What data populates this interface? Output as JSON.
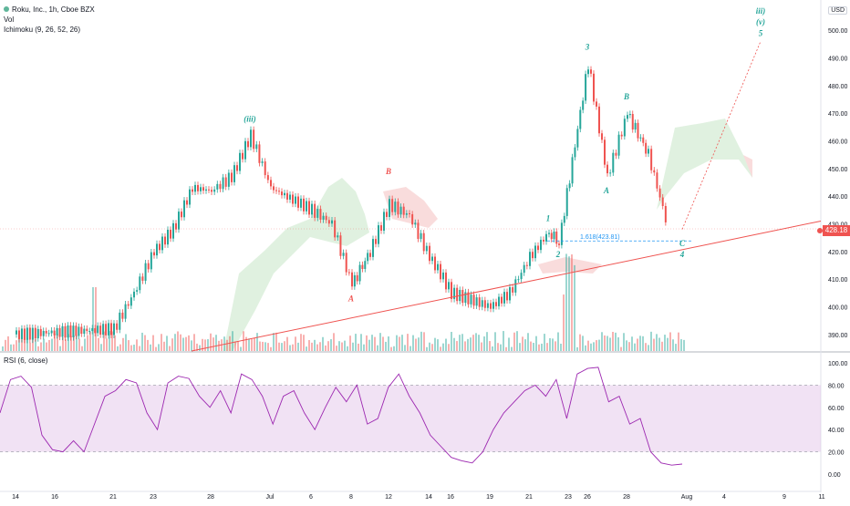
{
  "legend": {
    "symbol": "Roku, Inc., 1h, Cboe BZX",
    "volume": "Vol",
    "ichimoku": "Ichimoku (9, 26, 52, 26)"
  },
  "currency": "USD",
  "current_price_label": "428.18",
  "fib_label": "1.618(423.81)",
  "rsi_legend": "RSI (6, close)",
  "colors": {
    "up": "#26a69a",
    "down": "#ef5350",
    "rsi": "#9c27b0",
    "cloud_bull": "#a5d6a7",
    "cloud_bear": "#ef9a9a",
    "wave_green": "#26a69a",
    "wave_red": "#ef5350"
  },
  "chart_data": [
    {
      "type": "candlestick",
      "title": "",
      "y_ticks": [
        "390.00",
        "400.00",
        "410.00",
        "420.00",
        "430.00",
        "440.00",
        "450.00",
        "460.00",
        "470.00",
        "480.00",
        "490.00",
        "500.00"
      ],
      "ylim": [
        384,
        506
      ],
      "x_ticks": [
        "14",
        "16",
        "21",
        "23",
        "28",
        "Jul",
        "6",
        "8",
        "12",
        "14",
        "16",
        "19",
        "21",
        "23",
        "26",
        "28",
        "Aug",
        "4",
        "9",
        "11"
      ],
      "price_anchors": [
        {
          "date": "Jun 14",
          "price": 390
        },
        {
          "date": "Jun 21",
          "price": 392
        },
        {
          "date": "Jun 22",
          "price": 405
        },
        {
          "date": "Jun 23",
          "price": 420
        },
        {
          "date": "Jun 24",
          "price": 428
        },
        {
          "date": "Jun 25",
          "price": 443
        },
        {
          "date": "Jun 28",
          "price": 442
        },
        {
          "date": "Jun 29",
          "price": 447
        },
        {
          "date": "Jun 30",
          "price": 462
        },
        {
          "date": "Jul 1",
          "price": 443
        },
        {
          "date": "Jul 6",
          "price": 435
        },
        {
          "date": "Jul 7",
          "price": 430
        },
        {
          "date": "Jul 8",
          "price": 408
        },
        {
          "date": "Jul 9",
          "price": 420
        },
        {
          "date": "Jul 12",
          "price": 437
        },
        {
          "date": "Jul 13",
          "price": 433
        },
        {
          "date": "Jul 14",
          "price": 418
        },
        {
          "date": "Jul 15",
          "price": 412
        },
        {
          "date": "Jul 16",
          "price": 405
        },
        {
          "date": "Jul 19",
          "price": 400
        },
        {
          "date": "Jul 20",
          "price": 405
        },
        {
          "date": "Jul 21",
          "price": 418
        },
        {
          "date": "Jul 22",
          "price": 427
        },
        {
          "date": "Jul 23",
          "price": 423
        },
        {
          "date": "Jul 26",
          "price": 488
        },
        {
          "date": "Jul 27",
          "price": 447
        },
        {
          "date": "Jul 28",
          "price": 470
        },
        {
          "date": "Jul 29",
          "price": 455
        },
        {
          "date": "Jul 30",
          "price": 428
        }
      ],
      "wave_labels": [
        {
          "text": "(iii)",
          "date": "Jun 30",
          "price": 467,
          "color": "green"
        },
        {
          "text": "A",
          "date": "Jul 8",
          "price": 402,
          "color": "red"
        },
        {
          "text": "B",
          "date": "Jul 12",
          "price": 448,
          "color": "red"
        },
        {
          "text": "1",
          "date": "Jul 22",
          "price": 431,
          "color": "green"
        },
        {
          "text": "2",
          "date": "Jul 23",
          "price": 418,
          "color": "green"
        },
        {
          "text": "3",
          "date": "Jul 26",
          "price": 493,
          "color": "green"
        },
        {
          "text": "A",
          "date": "Jul 27",
          "price": 441,
          "color": "green"
        },
        {
          "text": "B",
          "date": "Jul 28",
          "price": 475,
          "color": "green"
        },
        {
          "text": "C",
          "date": "Jul 31",
          "price": 422,
          "color": "green"
        },
        {
          "text": "4",
          "date": "Jul 31",
          "price": 418,
          "color": "green"
        },
        {
          "text": "5",
          "date": "Aug 5",
          "price": 498,
          "color": "green"
        },
        {
          "text": "(v)",
          "date": "Aug 5",
          "price": 502,
          "color": "green"
        },
        {
          "text": "iii)",
          "date": "Aug 5",
          "price": 506,
          "color": "green"
        }
      ],
      "current_price": 428.18,
      "fib_target": 423.81
    },
    {
      "type": "line",
      "title": "RSI (6, close)",
      "y_ticks": [
        "0.00",
        "20.00",
        "40.00",
        "60.00",
        "80.00",
        "100.00"
      ],
      "ylim": [
        0,
        100
      ],
      "band": [
        20,
        80
      ],
      "series": [
        {
          "name": "RSI",
          "values": [
            55,
            85,
            88,
            78,
            35,
            22,
            20,
            30,
            20,
            45,
            70,
            75,
            85,
            82,
            55,
            40,
            82,
            88,
            86,
            70,
            60,
            75,
            55,
            90,
            85,
            70,
            45,
            70,
            75,
            55,
            40,
            60,
            78,
            65,
            80,
            45,
            50,
            78,
            90,
            70,
            55,
            35,
            25,
            15,
            12,
            10,
            20,
            40,
            55,
            65,
            75,
            80,
            70,
            85,
            50,
            90,
            95,
            96,
            65,
            70,
            45,
            50,
            20,
            10,
            8,
            9
          ]
        }
      ]
    }
  ]
}
